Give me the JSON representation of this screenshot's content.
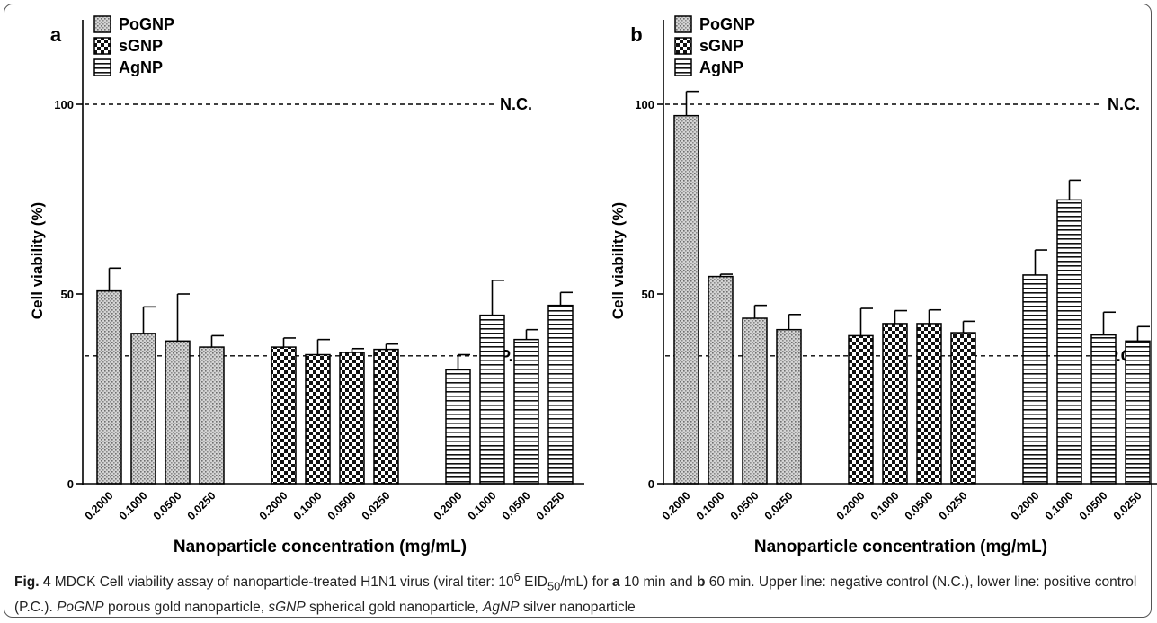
{
  "chart_data": [
    {
      "type": "bar",
      "panel_label": "a",
      "ylabel": "Cell viability (%)",
      "xlabel": "Nanoparticle concentration  (mg/mL)",
      "ylim": [
        0,
        118
      ],
      "yticks": [
        "0",
        "50",
        "100"
      ],
      "reference_lines": [
        {
          "label": "N.C.",
          "value": 100
        },
        {
          "label": "P.C.",
          "value": 33.7
        }
      ],
      "legend_position": "top-left",
      "series": [
        {
          "name": "PoGNP",
          "categories": [
            "0.2000",
            "0.1000",
            "0.0500",
            "0.0250"
          ],
          "values": [
            50.8,
            39.6,
            37.6,
            36.0
          ],
          "errors": [
            6.0,
            7.0,
            12.4,
            3.0
          ]
        },
        {
          "name": "sGNP",
          "categories": [
            "0.2000",
            "0.1000",
            "0.0500",
            "0.0250"
          ],
          "values": [
            36.0,
            34.0,
            34.6,
            35.4
          ],
          "errors": [
            2.4,
            4.0,
            1.0,
            1.4
          ]
        },
        {
          "name": "AgNP",
          "categories": [
            "0.2000",
            "0.1000",
            "0.0500",
            "0.0250"
          ],
          "values": [
            30.0,
            44.4,
            38.0,
            47.0
          ],
          "errors": [
            4.0,
            9.2,
            2.6,
            3.4
          ]
        }
      ]
    },
    {
      "type": "bar",
      "panel_label": "b",
      "ylabel": "Cell viability (%)",
      "xlabel": "Nanoparticle concentration  (mg/mL)",
      "ylim": [
        0,
        118
      ],
      "yticks": [
        "0",
        "50",
        "100"
      ],
      "reference_lines": [
        {
          "label": "N.C.",
          "value": 100
        },
        {
          "label": "P.C.",
          "value": 33.7
        }
      ],
      "legend_position": "top-left",
      "series": [
        {
          "name": "PoGNP",
          "categories": [
            "0.2000",
            "0.1000",
            "0.0500",
            "0.0250"
          ],
          "values": [
            97.0,
            54.6,
            43.6,
            40.6
          ],
          "errors": [
            6.4,
            0.6,
            3.4,
            4.0
          ]
        },
        {
          "name": "sGNP",
          "categories": [
            "0.2000",
            "0.1000",
            "0.0500",
            "0.0250"
          ],
          "values": [
            39.0,
            42.2,
            42.2,
            39.8
          ],
          "errors": [
            7.2,
            3.4,
            3.6,
            3.0
          ]
        },
        {
          "name": "AgNP",
          "categories": [
            "0.2000",
            "0.1000",
            "0.0500",
            "0.0250"
          ],
          "values": [
            55.0,
            74.8,
            39.2,
            37.6
          ],
          "errors": [
            6.6,
            5.2,
            6.0,
            3.8
          ]
        }
      ]
    }
  ],
  "caption": {
    "label": "Fig. 4",
    "text_1": "  MDCK Cell viability assay of nanoparticle-treated H1N1 virus (viral titer: 10",
    "sup_1": "6",
    "text_2": " EID",
    "sub_1": "50",
    "text_3": "/mL) for ",
    "bold_a": "a",
    "text_4": " 10 min and ",
    "bold_b": "b",
    "text_5": " 60 min. Upper line: negative control (N.C.), lower line: positive control (P.C.). ",
    "abbr_1": "PoGNP",
    "text_6": " porous gold nanoparticle, ",
    "abbr_2": "sGNP",
    "text_7": " spherical gold nanoparticle, ",
    "abbr_3": "AgNP",
    "text_8": " silver nanoparticle"
  }
}
